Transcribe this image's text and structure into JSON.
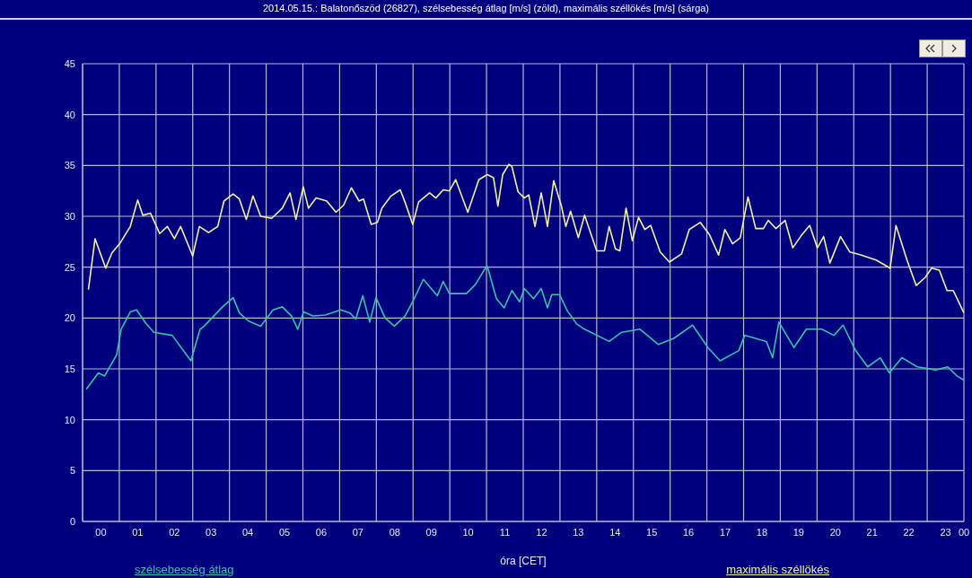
{
  "chart_data": {
    "type": "line",
    "title": "2014.05.15.: Balatonőszöd (26827), szélsebesség átlag [m/s] (zöld), maximális széllökés [m/s] (sárga)",
    "xlabel": "óra [CET]",
    "xlim": [
      0,
      24
    ],
    "xticks": [
      {
        "value": 0.5,
        "label": "00"
      },
      {
        "value": 1.5,
        "label": "01"
      },
      {
        "value": 2.5,
        "label": "02"
      },
      {
        "value": 3.5,
        "label": "03"
      },
      {
        "value": 4.5,
        "label": "04"
      },
      {
        "value": 5.5,
        "label": "05"
      },
      {
        "value": 6.5,
        "label": "06"
      },
      {
        "value": 7.5,
        "label": "07"
      },
      {
        "value": 8.5,
        "label": "08"
      },
      {
        "value": 9.5,
        "label": "09"
      },
      {
        "value": 10.5,
        "label": "10"
      },
      {
        "value": 11.5,
        "label": "11"
      },
      {
        "value": 12.5,
        "label": "12"
      },
      {
        "value": 13.5,
        "label": "13"
      },
      {
        "value": 14.5,
        "label": "14"
      },
      {
        "value": 15.5,
        "label": "15"
      },
      {
        "value": 16.5,
        "label": "16"
      },
      {
        "value": 17.5,
        "label": "17"
      },
      {
        "value": 18.5,
        "label": "18"
      },
      {
        "value": 19.5,
        "label": "19"
      },
      {
        "value": 20.5,
        "label": "20"
      },
      {
        "value": 21.5,
        "label": "21"
      },
      {
        "value": 22.5,
        "label": "22"
      },
      {
        "value": 23.5,
        "label": "23"
      },
      {
        "value": 24,
        "label": "00"
      }
    ],
    "ylim": [
      0,
      45
    ],
    "yticks": [
      0,
      5,
      10,
      15,
      20,
      25,
      30,
      35,
      40,
      45
    ],
    "grid": true,
    "legend": "bottom",
    "marker": "none",
    "line_style": "solid",
    "series": [
      {
        "name": "szélsebesség átlag",
        "color": "#3cc0a8",
        "x": [
          0.1,
          0.43,
          0.6,
          0.93,
          1.05,
          1.3,
          1.47,
          1.72,
          1.94,
          2.44,
          2.95,
          3.2,
          3.31,
          3.81,
          4.1,
          4.27,
          4.52,
          4.85,
          5.19,
          5.44,
          5.69,
          5.86,
          6.02,
          6.27,
          6.61,
          7.03,
          7.28,
          7.44,
          7.63,
          7.82,
          7.99,
          8.24,
          8.49,
          8.78,
          8.99,
          9.28,
          9.66,
          9.82,
          9.99,
          10.45,
          10.7,
          10.95,
          11.02,
          11.27,
          11.48,
          11.69,
          11.9,
          12.03,
          12.28,
          12.49,
          12.66,
          12.78,
          12.99,
          13.2,
          13.46,
          13.67,
          14.34,
          14.68,
          15.18,
          15.68,
          16.1,
          16.61,
          17.03,
          17.36,
          17.87,
          18.03,
          18.62,
          18.79,
          18.96,
          19.37,
          19.71,
          20.13,
          20.46,
          20.71,
          21.05,
          21.38,
          21.72,
          21.97,
          22.31,
          22.73,
          23.23,
          23.56,
          23.81,
          24
        ],
        "values": [
          13.0,
          14.6,
          14.3,
          16.4,
          18.9,
          20.6,
          20.8,
          19.5,
          18.6,
          18.3,
          15.8,
          18.9,
          19.2,
          21.1,
          22.0,
          20.5,
          19.7,
          19.2,
          20.8,
          21.1,
          20.2,
          18.9,
          20.6,
          20.2,
          20.3,
          20.8,
          20.5,
          19.9,
          22.2,
          19.6,
          22.0,
          20.0,
          19.2,
          20.2,
          21.6,
          23.8,
          22.2,
          23.6,
          22.4,
          22.4,
          23.3,
          24.8,
          25.1,
          21.9,
          21.0,
          22.7,
          21.6,
          22.9,
          21.9,
          22.9,
          21.0,
          22.3,
          22.3,
          20.7,
          19.4,
          18.9,
          17.7,
          18.6,
          18.9,
          17.4,
          18.0,
          19.3,
          17.1,
          15.8,
          16.8,
          18.3,
          17.7,
          16.1,
          19.6,
          17.1,
          18.9,
          18.9,
          18.3,
          19.3,
          16.8,
          15.2,
          16.1,
          14.6,
          16.1,
          15.2,
          14.9,
          15.2,
          14.3,
          13.9
        ]
      },
      {
        "name": "maximális széllökés",
        "color": "#f0f0a0",
        "x": [
          0.16,
          0.34,
          0.63,
          0.8,
          1.01,
          1.3,
          1.5,
          1.64,
          1.85,
          2.1,
          2.31,
          2.5,
          2.67,
          3.0,
          3.18,
          3.43,
          3.68,
          3.85,
          4.1,
          4.27,
          4.46,
          4.64,
          4.85,
          5.15,
          5.44,
          5.65,
          5.81,
          6.01,
          6.15,
          6.36,
          6.65,
          6.9,
          7.11,
          7.32,
          7.53,
          7.65,
          7.86,
          8.03,
          8.15,
          8.4,
          8.65,
          8.78,
          8.99,
          9.15,
          9.45,
          9.62,
          9.82,
          9.99,
          10.16,
          10.49,
          10.79,
          11.02,
          11.19,
          11.31,
          11.44,
          11.61,
          11.69,
          11.86,
          12.03,
          12.15,
          12.32,
          12.49,
          12.66,
          12.83,
          13.04,
          13.16,
          13.29,
          13.5,
          13.67,
          14.0,
          14.21,
          14.34,
          14.51,
          14.63,
          14.8,
          14.97,
          15.14,
          15.31,
          15.47,
          15.73,
          15.98,
          16.31,
          16.52,
          16.82,
          17.07,
          17.32,
          17.49,
          17.7,
          17.91,
          18.12,
          18.33,
          18.54,
          18.67,
          18.88,
          19.13,
          19.34,
          19.59,
          19.8,
          20.01,
          20.18,
          20.35,
          20.64,
          20.89,
          21.19,
          21.61,
          21.99,
          22.15,
          22.45,
          22.7,
          22.95,
          23.12,
          23.33,
          23.54,
          23.71,
          24.0
        ],
        "values": [
          22.8,
          27.8,
          24.9,
          26.4,
          27.3,
          29.0,
          31.6,
          30.1,
          30.3,
          28.3,
          29.0,
          27.8,
          29.0,
          26.1,
          29.0,
          28.4,
          29.0,
          31.5,
          32.2,
          31.7,
          29.7,
          32.0,
          30.0,
          29.8,
          30.8,
          32.3,
          29.7,
          32.9,
          30.8,
          31.8,
          31.5,
          30.4,
          31.1,
          32.8,
          31.5,
          31.7,
          29.2,
          29.4,
          30.8,
          32.0,
          32.6,
          31.4,
          29.2,
          31.4,
          32.3,
          31.8,
          32.6,
          32.5,
          33.6,
          30.4,
          33.6,
          34.1,
          33.8,
          31.0,
          34.1,
          35.1,
          34.9,
          32.4,
          31.8,
          32.1,
          29.0,
          32.3,
          29.0,
          33.5,
          31.0,
          29.0,
          30.5,
          27.9,
          30.1,
          26.6,
          26.6,
          29.0,
          26.8,
          26.6,
          30.8,
          27.6,
          29.9,
          28.7,
          29.1,
          26.5,
          25.5,
          26.3,
          28.7,
          29.4,
          28.2,
          26.2,
          28.7,
          27.3,
          27.9,
          31.9,
          28.8,
          28.8,
          29.6,
          28.8,
          29.6,
          26.9,
          28.2,
          29.1,
          26.9,
          28.0,
          25.4,
          28.0,
          26.5,
          26.2,
          25.7,
          24.9,
          29.1,
          25.7,
          23.2,
          24.0,
          24.9,
          24.7,
          22.7,
          22.7,
          20.5
        ]
      }
    ]
  }
}
